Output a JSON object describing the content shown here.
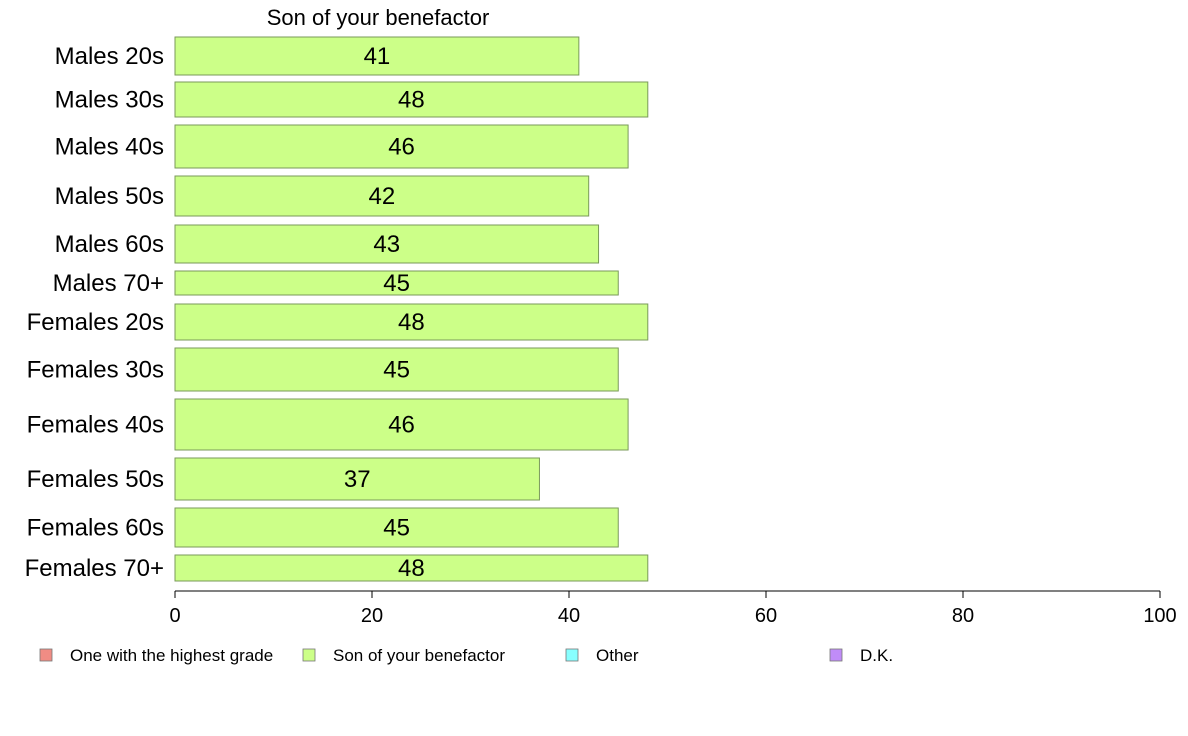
{
  "chart_data": {
    "type": "bar",
    "orientation": "horizontal",
    "title": "Son of your benefactor",
    "categories": [
      "Males 20s",
      "Males 30s",
      "Males 40s",
      "Males 50s",
      "Males 60s",
      "Males 70+",
      "Females 20s",
      "Females 30s",
      "Females 40s",
      "Females 50s",
      "Females 60s",
      "Females 70+"
    ],
    "values": [
      41,
      48,
      46,
      42,
      43,
      45,
      48,
      45,
      46,
      37,
      45,
      48
    ],
    "data_labels": [
      "41",
      "48",
      "46",
      "42",
      "43",
      "45",
      "48",
      "45",
      "46",
      "37",
      "45",
      "48"
    ],
    "xlim": [
      0,
      100
    ],
    "xticks": [
      0,
      20,
      40,
      60,
      80,
      100
    ],
    "grid": false,
    "bar_color": "#ccff88",
    "bar_stroke": "#7a9a5a",
    "legend_position": "bottom",
    "legend": [
      {
        "label": "One with the highest grade",
        "color": "#f08c84"
      },
      {
        "label": "Son of your benefactor",
        "color": "#ccff88"
      },
      {
        "label": "Other",
        "color": "#88ffff"
      },
      {
        "label": "D.K.",
        "color": "#c08cf8"
      }
    ]
  }
}
